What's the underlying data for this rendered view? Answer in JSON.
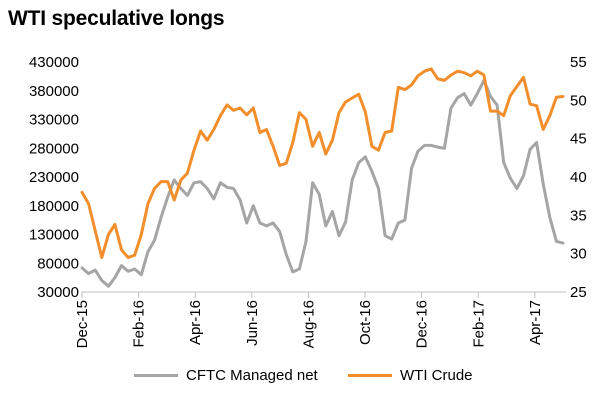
{
  "title": "WTI speculative longs",
  "chart_data": {
    "type": "line",
    "title": "WTI speculative longs",
    "x_tick_labels": [
      "Dec-15",
      "Feb-16",
      "Apr-16",
      "Jun-16",
      "Aug-16",
      "Oct-16",
      "Dec-16",
      "Feb-17",
      "Apr-17"
    ],
    "y_left": {
      "ticks": [
        "430000",
        "380000",
        "330000",
        "280000",
        "230000",
        "180000",
        "130000",
        "80000",
        "30000"
      ],
      "ylim": [
        30000,
        430000
      ]
    },
    "y_right": {
      "ticks": [
        "55",
        "50",
        "45",
        "40",
        "35",
        "30",
        "25"
      ],
      "ylim": [
        25,
        55
      ]
    },
    "grid": false,
    "legend_position": "bottom",
    "series": [
      {
        "name": "CFTC Managed net",
        "axis": "left",
        "color": "#a5a5a5",
        "values": [
          72000,
          62000,
          68000,
          50000,
          40000,
          55000,
          76000,
          66000,
          70000,
          60000,
          100000,
          120000,
          160000,
          195000,
          225000,
          210000,
          198000,
          220000,
          222000,
          210000,
          192000,
          220000,
          212000,
          210000,
          190000,
          150000,
          180000,
          150000,
          145000,
          150000,
          135000,
          95000,
          65000,
          70000,
          118000,
          220000,
          200000,
          145000,
          170000,
          128000,
          152000,
          225000,
          255000,
          265000,
          240000,
          210000,
          128000,
          122000,
          150000,
          155000,
          245000,
          275000,
          285000,
          285000,
          282000,
          280000,
          350000,
          368000,
          375000,
          355000,
          375000,
          398000,
          370000,
          355000,
          255000,
          228000,
          210000,
          232000,
          278000,
          290000,
          218000,
          160000,
          118000,
          115000
        ]
      },
      {
        "name": "WTI Crude",
        "axis": "right",
        "color": "#f28e2b",
        "values": [
          38.0,
          36.5,
          33.0,
          29.5,
          32.5,
          33.8,
          30.5,
          29.5,
          29.8,
          32.5,
          36.5,
          38.5,
          39.4,
          39.4,
          37.0,
          39.6,
          40.5,
          43.5,
          46.0,
          44.8,
          46.2,
          48.0,
          49.4,
          48.7,
          49.0,
          48.1,
          49.0,
          45.8,
          46.2,
          44.0,
          41.5,
          41.8,
          44.5,
          48.4,
          47.5,
          44.0,
          45.8,
          43.0,
          44.8,
          48.4,
          49.8,
          50.3,
          50.8,
          48.5,
          44.0,
          43.5,
          45.8,
          46.0,
          51.7,
          51.4,
          52.0,
          53.2,
          53.8,
          54.1,
          52.8,
          52.6,
          53.3,
          53.8,
          53.6,
          53.2,
          53.8,
          53.3,
          48.6,
          48.6,
          48.0,
          50.6,
          51.8,
          53.0,
          49.5,
          49.3,
          46.2,
          48.0,
          50.4,
          50.5
        ]
      }
    ]
  }
}
